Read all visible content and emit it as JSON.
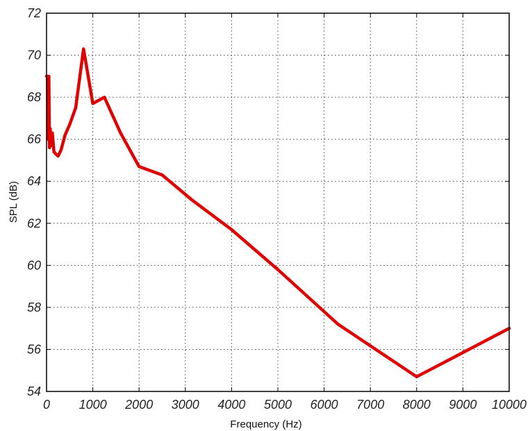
{
  "chart_data": {
    "type": "line",
    "title": "",
    "xlabel": "Frequency (Hz)",
    "ylabel": "SPL (dB)",
    "xlim": [
      0,
      10000
    ],
    "ylim": [
      54,
      72
    ],
    "xticks": [
      0,
      1000,
      2000,
      3000,
      4000,
      5000,
      6000,
      7000,
      8000,
      9000,
      10000
    ],
    "yticks": [
      54,
      56,
      58,
      60,
      62,
      64,
      66,
      68,
      70,
      72
    ],
    "grid": true,
    "legend": "none",
    "series": [
      {
        "color": "#e00000",
        "x": [
          0,
          20,
          31.5,
          50,
          63,
          80,
          100,
          125,
          160,
          200,
          250,
          315,
          400,
          500,
          630,
          800,
          1000,
          1250,
          1600,
          2000,
          2500,
          3150,
          4000,
          5000,
          6300,
          8000,
          10000
        ],
        "y": [
          69.0,
          69.0,
          66.0,
          69.0,
          65.6,
          66.5,
          65.7,
          66.3,
          65.4,
          65.3,
          65.2,
          65.5,
          66.2,
          66.7,
          67.5,
          70.3,
          67.7,
          68.0,
          66.3,
          64.7,
          64.3,
          63.1,
          61.7,
          59.8,
          57.2,
          54.7,
          57.0
        ]
      }
    ]
  }
}
